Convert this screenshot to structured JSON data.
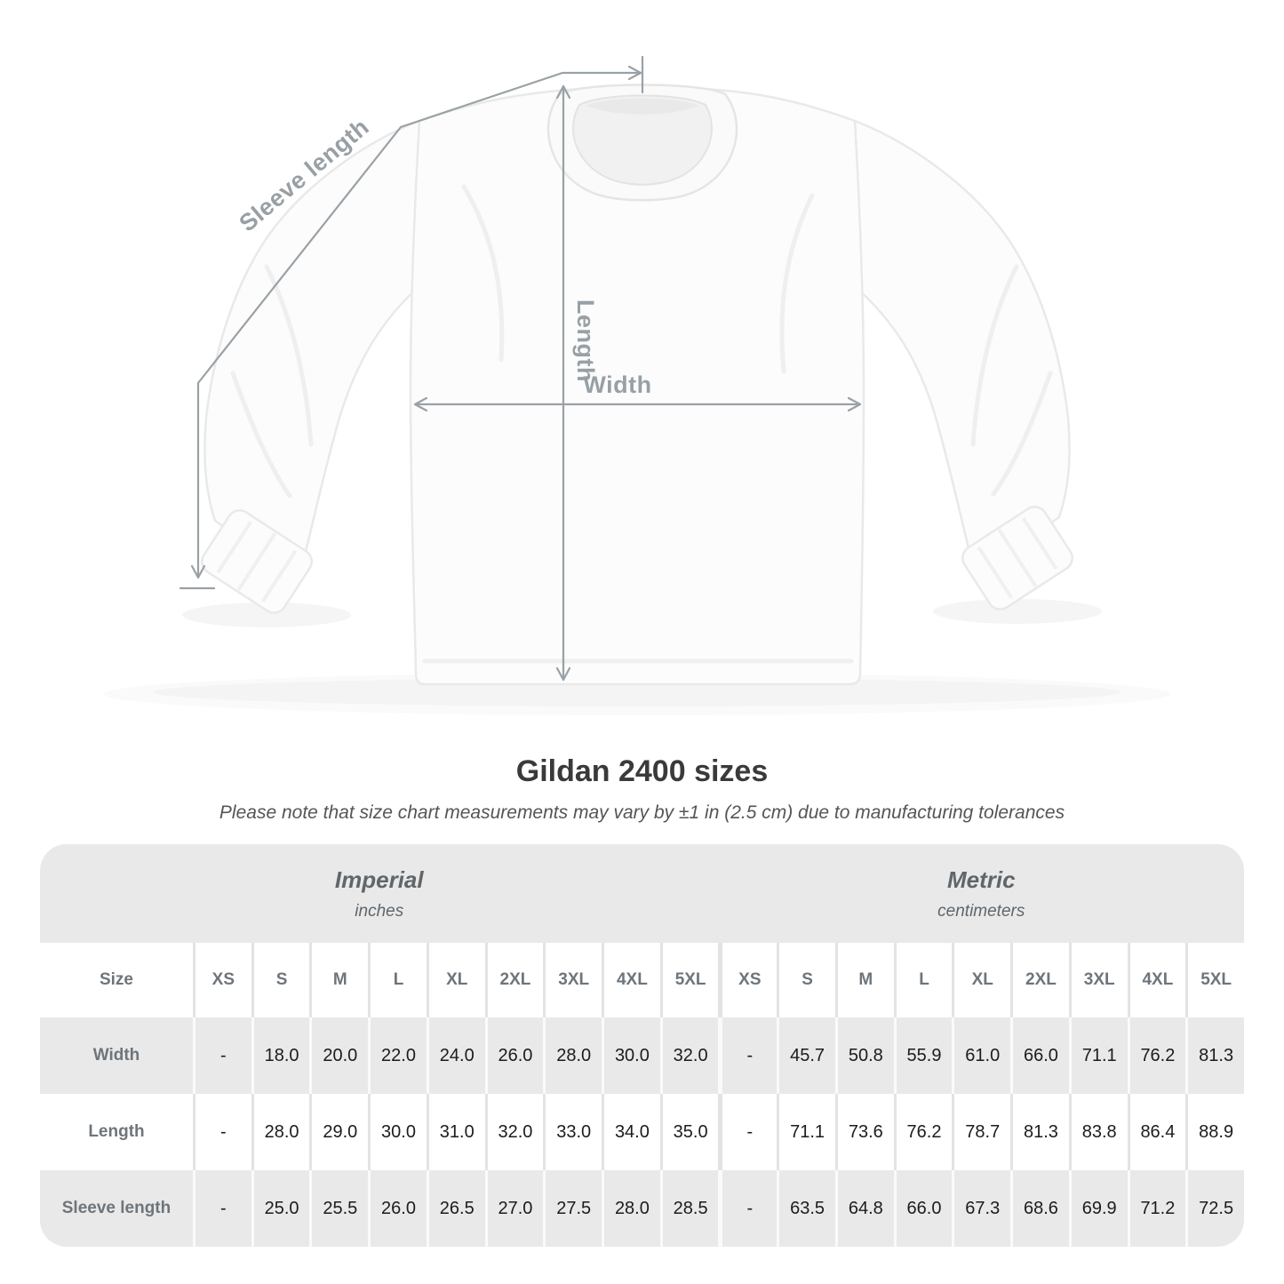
{
  "page": {
    "title": "Gildan 2400 sizes",
    "subtitle": "Please note that size chart measurements may vary by ±1 in (2.5 cm) due to manufacturing tolerances"
  },
  "diagram": {
    "sleeve_length_label": "Sleeve length",
    "length_label": "Length",
    "width_label": "Width"
  },
  "table": {
    "size_column_header": "Size",
    "sections": [
      {
        "label": "Imperial",
        "unit": "inches"
      },
      {
        "label": "Metric",
        "unit": "centimeters"
      }
    ],
    "sizes": [
      "XS",
      "S",
      "M",
      "L",
      "XL",
      "2XL",
      "3XL",
      "4XL",
      "5XL"
    ],
    "rows": [
      {
        "label": "Width",
        "imperial": [
          "-",
          "18.0",
          "20.0",
          "22.0",
          "24.0",
          "26.0",
          "28.0",
          "30.0",
          "32.0"
        ],
        "metric": [
          "-",
          "45.7",
          "50.8",
          "55.9",
          "61.0",
          "66.0",
          "71.1",
          "76.2",
          "81.3"
        ]
      },
      {
        "label": "Length",
        "imperial": [
          "-",
          "28.0",
          "29.0",
          "30.0",
          "31.0",
          "32.0",
          "33.0",
          "34.0",
          "35.0"
        ],
        "metric": [
          "-",
          "71.1",
          "73.6",
          "76.2",
          "78.7",
          "81.3",
          "83.8",
          "86.4",
          "88.9"
        ]
      },
      {
        "label": "Sleeve length",
        "imperial": [
          "-",
          "25.0",
          "25.5",
          "26.0",
          "26.5",
          "27.0",
          "27.5",
          "28.0",
          "28.5"
        ],
        "metric": [
          "-",
          "63.5",
          "64.8",
          "66.0",
          "67.3",
          "68.6",
          "69.9",
          "71.2",
          "72.5"
        ]
      }
    ]
  },
  "colors": {
    "measurement_gray": "#9aa1a6",
    "table_band_gray": "#e9e9e9",
    "header_text_gray": "#6e757b",
    "value_text": "#1c1c1c",
    "title_text": "#3a3a3a"
  }
}
